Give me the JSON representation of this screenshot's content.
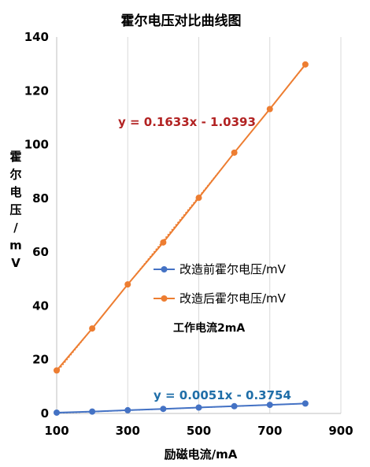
{
  "chart_data": {
    "type": "scatter",
    "title": "霍尔电压对比曲线图",
    "xlabel": "励磁电流/mA",
    "ylabel": "霍尔电压/mV",
    "xlim": [
      100,
      900
    ],
    "ylim": [
      0,
      140
    ],
    "x_ticks": [
      "100",
      "300",
      "500",
      "700",
      "900"
    ],
    "y_ticks": [
      "0",
      "20",
      "40",
      "60",
      "80",
      "100",
      "120",
      "140"
    ],
    "grid": "vertical",
    "legend_position": "center-left",
    "annotation": "工作电流2mA",
    "series": [
      {
        "name": "改造前霍尔电压/mV",
        "color": "#4472c4",
        "x": [
          100,
          200,
          300,
          400,
          500,
          600,
          700,
          800
        ],
        "y": [
          0.3,
          0.7,
          1.2,
          1.7,
          2.2,
          2.7,
          3.2,
          3.7
        ],
        "trendline_label": "y = 0.0051x - 0.3754",
        "trendline_color": "#1f6ea8",
        "slope": 0.0051,
        "intercept": -0.3754
      },
      {
        "name": "改造后霍尔电压/mV",
        "color": "#ed7d31",
        "x": [
          100,
          200,
          300,
          400,
          500,
          600,
          700,
          800
        ],
        "y": [
          16.0,
          31.6,
          48.0,
          63.6,
          80.2,
          97.0,
          113.2,
          129.8
        ],
        "trendline_label": "y = 0.1633x - 1.0393",
        "trendline_color": "#b22222",
        "slope": 0.1633,
        "intercept": -1.0393
      }
    ]
  }
}
